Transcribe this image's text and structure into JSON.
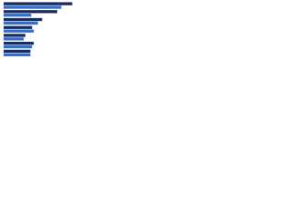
{
  "chart_data": {
    "type": "hbar",
    "categories": [
      null,
      null,
      null,
      null,
      null,
      null,
      null
    ],
    "series": [
      {
        "color": "#1a2b5c",
        "values": [
          82,
          64,
          46,
          34,
          26,
          36,
          32
        ]
      },
      {
        "color": "#2f6fd0",
        "values": [
          69,
          33,
          41,
          36,
          24,
          34,
          32
        ]
      }
    ],
    "xlim": [
      0,
      100
    ]
  }
}
